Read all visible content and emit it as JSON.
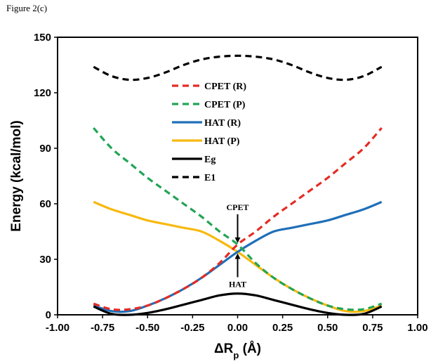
{
  "figure_label": "Figure 2(c)",
  "chart_data": {
    "type": "line",
    "xlabel": "ΔRp (Å)",
    "ylabel": "Energy (kcal/mol)",
    "xlim": [
      -1.0,
      1.0
    ],
    "ylim": [
      0,
      150
    ],
    "x_ticks": [
      -1.0,
      -0.75,
      -0.5,
      -0.25,
      0.0,
      0.25,
      0.5,
      0.75,
      1.0
    ],
    "x_tick_labels": [
      "-1.00",
      "-0.75",
      "-0.50",
      "-0.25",
      "0.00",
      "0.25",
      "0.50",
      "0.75",
      "1.00"
    ],
    "y_ticks": [
      0,
      30,
      60,
      90,
      120,
      150
    ],
    "y_tick_labels": [
      "0",
      "30",
      "60",
      "90",
      "120",
      "150"
    ],
    "grid": false,
    "legend_position": "upper-center",
    "series": [
      {
        "name": "CPET (R)",
        "color": "#e52b24",
        "style": "dashed",
        "x": [
          -0.8,
          -0.7,
          -0.6,
          -0.5,
          -0.4,
          -0.3,
          -0.2,
          -0.1,
          0.0,
          0.1,
          0.2,
          0.3,
          0.4,
          0.5,
          0.6,
          0.7,
          0.8
        ],
        "y": [
          6,
          3,
          3,
          5,
          9,
          14,
          20,
          28,
          38,
          45,
          53,
          60,
          67,
          74,
          82,
          90,
          101
        ]
      },
      {
        "name": "CPET (P)",
        "color": "#22a455",
        "style": "dashed",
        "x": [
          -0.8,
          -0.7,
          -0.6,
          -0.5,
          -0.4,
          -0.3,
          -0.2,
          -0.1,
          0.0,
          0.1,
          0.2,
          0.3,
          0.4,
          0.5,
          0.6,
          0.7,
          0.8
        ],
        "y": [
          101,
          90,
          82,
          74,
          67,
          60,
          53,
          45,
          38,
          28,
          20,
          14,
          9,
          5,
          3,
          3,
          6
        ]
      },
      {
        "name": "HAT (R)",
        "color": "#1f6fb8",
        "style": "solid",
        "x": [
          -0.8,
          -0.7,
          -0.6,
          -0.5,
          -0.4,
          -0.3,
          -0.2,
          -0.1,
          0.0,
          0.1,
          0.2,
          0.3,
          0.4,
          0.5,
          0.6,
          0.7,
          0.8
        ],
        "y": [
          5,
          2,
          2,
          5,
          9,
          14,
          20,
          27,
          34,
          40,
          45,
          47,
          49,
          51,
          54,
          57,
          61
        ]
      },
      {
        "name": "HAT (P)",
        "color": "#f7b90f",
        "style": "solid",
        "x": [
          -0.8,
          -0.7,
          -0.6,
          -0.5,
          -0.4,
          -0.3,
          -0.2,
          -0.1,
          0.0,
          0.1,
          0.2,
          0.3,
          0.4,
          0.5,
          0.6,
          0.7,
          0.8
        ],
        "y": [
          61,
          57,
          54,
          51,
          49,
          47,
          45,
          40,
          34,
          27,
          20,
          14,
          9,
          5,
          2,
          2,
          5
        ]
      },
      {
        "name": "Eg",
        "color": "#000000",
        "style": "solid",
        "x": [
          -0.8,
          -0.7,
          -0.6,
          -0.5,
          -0.4,
          -0.3,
          -0.2,
          -0.1,
          0.0,
          0.1,
          0.2,
          0.3,
          0.4,
          0.5,
          0.6,
          0.7,
          0.8
        ],
        "y": [
          4.5,
          0.5,
          0,
          1,
          3,
          5.5,
          8,
          10.5,
          11.5,
          10.5,
          8,
          5.5,
          3,
          1,
          0,
          0.5,
          4.5
        ]
      },
      {
        "name": "E1",
        "color": "#000000",
        "style": "dashed",
        "x": [
          -0.8,
          -0.7,
          -0.6,
          -0.5,
          -0.4,
          -0.3,
          -0.2,
          -0.1,
          0.0,
          0.1,
          0.2,
          0.3,
          0.4,
          0.5,
          0.6,
          0.7,
          0.8
        ],
        "y": [
          134,
          129,
          127,
          128,
          131,
          135,
          138,
          139.5,
          140,
          139.5,
          138,
          135,
          131,
          128,
          127,
          129,
          134
        ]
      }
    ],
    "annotations": [
      {
        "text": "CPET",
        "x": 0.0,
        "y": 38,
        "arrow": "down"
      },
      {
        "text": "HAT",
        "x": 0.0,
        "y": 34,
        "arrow": "up"
      }
    ]
  }
}
